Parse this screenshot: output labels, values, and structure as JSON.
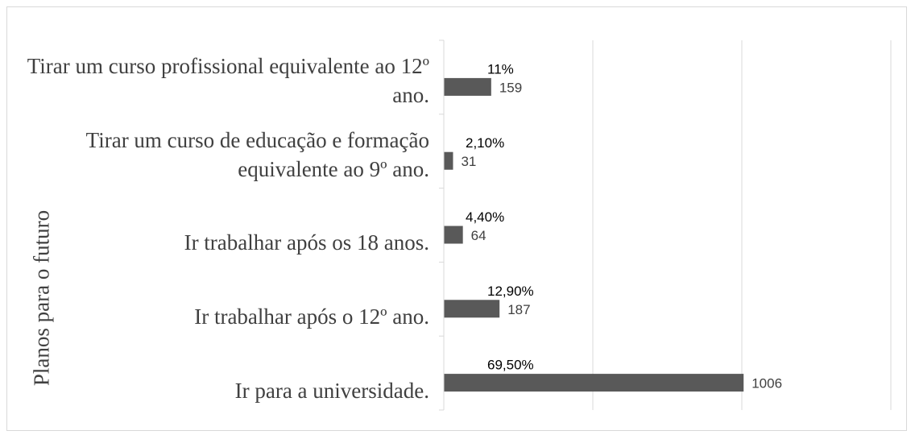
{
  "chart_data": {
    "type": "barh",
    "y_axis_label": "Planos para o futuro",
    "categories": [
      "Tirar um curso profissional equivalente ao 12º ano.",
      "Tirar um curso de educação e formação equivalente ao 9º ano.",
      "Ir trabalhar após os 18 anos.",
      "Ir trabalhar após o 12º ano.",
      "Ir para a universidade."
    ],
    "values": [
      159,
      31,
      64,
      187,
      1006
    ],
    "percent_labels": [
      "11%",
      "2,10%",
      "4,40%",
      "12,90%",
      "69,50%"
    ],
    "color": "#595959",
    "xlim": [
      0,
      1500
    ],
    "xticks": [
      0,
      500,
      1000,
      1500
    ],
    "grid": true
  }
}
